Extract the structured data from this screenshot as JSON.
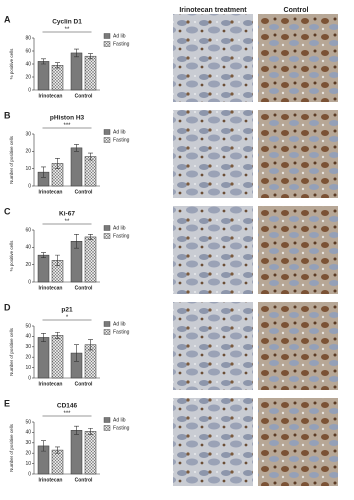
{
  "images": {
    "headers": [
      "Irinotecan treatment",
      "Control"
    ]
  },
  "chart_data": [
    {
      "type": "bar",
      "panel": "A",
      "title": "Cyclin D1",
      "y_label": "% positive cells",
      "categories": [
        "Irinotecan",
        "Control"
      ],
      "series": [
        {
          "name": "Ad lib",
          "color": "#7a7a7a",
          "pattern": "solid",
          "values": [
            44,
            57
          ],
          "errors": [
            4,
            6
          ]
        },
        {
          "name": "Fasting",
          "color": "#d0d0d0",
          "pattern": "crosshatch",
          "values": [
            38,
            52
          ],
          "errors": [
            4,
            4
          ]
        }
      ],
      "ylim": [
        0,
        80
      ],
      "yticks": [
        0,
        20,
        40,
        60,
        80
      ],
      "significance": "**"
    },
    {
      "type": "bar",
      "panel": "B",
      "title": "pHiston H3",
      "y_label": "Number of positive cells",
      "categories": [
        "Irinotecan",
        "Control"
      ],
      "series": [
        {
          "name": "Ad lib",
          "color": "#7a7a7a",
          "pattern": "solid",
          "values": [
            8,
            22
          ],
          "errors": [
            3,
            2
          ]
        },
        {
          "name": "Fasting",
          "color": "#d0d0d0",
          "pattern": "crosshatch",
          "values": [
            13,
            17
          ],
          "errors": [
            3,
            2
          ]
        }
      ],
      "ylim": [
        0,
        30
      ],
      "yticks": [
        0,
        10,
        20,
        30
      ],
      "significance": "***"
    },
    {
      "type": "bar",
      "panel": "C",
      "title": "Ki-67",
      "y_label": "% positive cells",
      "categories": [
        "Irinotecan",
        "Control"
      ],
      "series": [
        {
          "name": "Ad lib",
          "color": "#7a7a7a",
          "pattern": "solid",
          "values": [
            31,
            47
          ],
          "errors": [
            3,
            8
          ]
        },
        {
          "name": "Fasting",
          "color": "#d0d0d0",
          "pattern": "crosshatch",
          "values": [
            25,
            52
          ],
          "errors": [
            6,
            3
          ]
        }
      ],
      "ylim": [
        0,
        60
      ],
      "yticks": [
        0,
        20,
        40,
        60
      ],
      "significance": "**"
    },
    {
      "type": "bar",
      "panel": "D",
      "title": "p21",
      "y_label": "Number of positive cells",
      "categories": [
        "Irinotecan",
        "Control"
      ],
      "series": [
        {
          "name": "Ad lib",
          "color": "#7a7a7a",
          "pattern": "solid",
          "values": [
            39,
            24
          ],
          "errors": [
            4,
            8
          ]
        },
        {
          "name": "Fasting",
          "color": "#d0d0d0",
          "pattern": "crosshatch",
          "values": [
            41,
            32
          ],
          "errors": [
            3,
            5
          ]
        }
      ],
      "ylim": [
        0,
        50
      ],
      "yticks": [
        0,
        10,
        20,
        30,
        40,
        50
      ],
      "significance": "*"
    },
    {
      "type": "bar",
      "panel": "E",
      "title": "CD146",
      "y_label": "Number of positive cells",
      "categories": [
        "Irinotecan",
        "Control"
      ],
      "series": [
        {
          "name": "Ad lib",
          "color": "#7a7a7a",
          "pattern": "solid",
          "values": [
            27,
            42
          ],
          "errors": [
            5,
            4
          ]
        },
        {
          "name": "Fasting",
          "color": "#d0d0d0",
          "pattern": "crosshatch",
          "values": [
            23,
            41
          ],
          "errors": [
            3,
            3
          ]
        }
      ],
      "ylim": [
        0,
        50
      ],
      "yticks": [
        0,
        10,
        20,
        30,
        40,
        50
      ],
      "significance": "***"
    }
  ]
}
